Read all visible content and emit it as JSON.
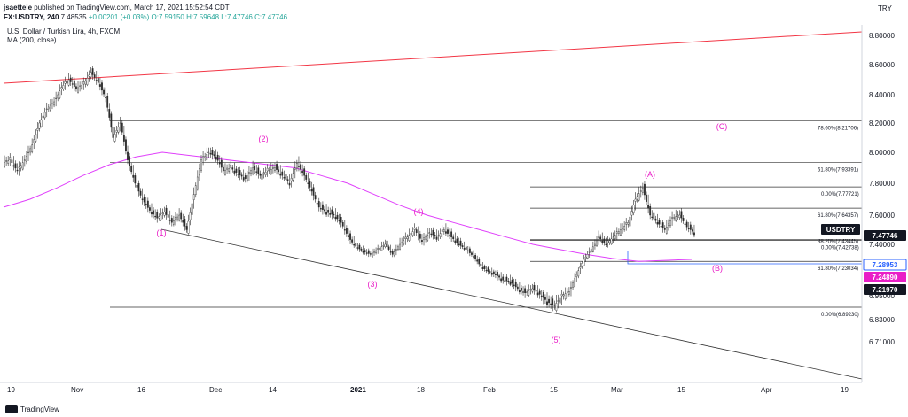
{
  "header": {
    "author": "jsaettele",
    "published": "published on TradingView.com, March 17, 2021 15:52:54 CDT",
    "symbol": "FX:USDTRY, 240",
    "last": "7.48535",
    "change": "+0.00201 (+0.03%)",
    "open": "O:7.59150",
    "high": "H:7.59648",
    "low": "L:7.47746",
    "close": "C:7.47746"
  },
  "legend": {
    "instrument": "U.S. Dollar / Turkish Lira, 4h, FXCM",
    "ma": "MA (200, close)"
  },
  "footer": {
    "brand": "TradingView"
  },
  "colors": {
    "candles": "#2a2a2a",
    "ma": "#e040fb",
    "wave": "#e91ec7",
    "trendline_top": "#f23645",
    "channel": "#333333",
    "level_blue": "#2962ff",
    "level_magenta": "#e91ec7",
    "axis_text": "#131722"
  },
  "chart_data": {
    "type": "line",
    "price_axis": {
      "ticks": [
        "8.80000",
        "8.60000",
        "8.40000",
        "8.20000",
        "8.00000",
        "7.80000",
        "7.60000",
        "7.40000",
        "7.10000",
        "6.95000",
        "6.83000",
        "6.71000"
      ],
      "currency": "TRY"
    },
    "time_axis": {
      "ticks": [
        "19",
        "Nov",
        "16",
        "Dec",
        "14",
        "2021",
        "18",
        "Feb",
        "15",
        "Mar",
        "15",
        "Apr",
        "19"
      ]
    },
    "price_labels": [
      {
        "text": "USDTRY",
        "style": "dark"
      },
      {
        "text": "7.47746",
        "style": "dark"
      },
      {
        "text": "7.28953",
        "style": "blue"
      },
      {
        "text": "7.24890",
        "style": "magenta"
      },
      {
        "text": "7.21970",
        "style": "dark"
      }
    ],
    "fib_labels": [
      {
        "text": "78.60%(8.21706)",
        "price": 8.21706
      },
      {
        "text": "61.80%(7.93391)",
        "price": 7.93391
      },
      {
        "text": "0.00%(7.77721)",
        "price": 7.77721
      },
      {
        "text": "61.80%(7.64357)",
        "price": 7.64357
      },
      {
        "text": "38.20%(7.43445)",
        "price": 7.43445
      },
      {
        "text": "0.00%(7.42738)",
        "price": 7.42738
      },
      {
        "text": "61.80%(7.23034)",
        "price": 7.23034
      },
      {
        "text": "0.00%(6.89230)",
        "price": 6.8923
      }
    ],
    "waves": [
      "(1)",
      "(2)",
      "(3)",
      "(4)",
      "(5)",
      "(A)",
      "(B)",
      "(C)"
    ],
    "series": [
      {
        "name": "USDTRY",
        "values": [
          7.93,
          7.95,
          7.88,
          7.95,
          8.05,
          8.2,
          8.3,
          8.35,
          8.45,
          8.5,
          8.44,
          8.47,
          8.55,
          8.48,
          8.38,
          8.1,
          8.2,
          7.95,
          7.8,
          7.7,
          7.63,
          7.58,
          7.62,
          7.55,
          7.6,
          7.5,
          7.73,
          7.95,
          8.0,
          7.97,
          7.88,
          7.9,
          7.86,
          7.83,
          7.9,
          7.85,
          7.88,
          7.9,
          7.85,
          7.8,
          7.93,
          7.85,
          7.75,
          7.65,
          7.62,
          7.6,
          7.55,
          7.45,
          7.38,
          7.33,
          7.3,
          7.35,
          7.4,
          7.3,
          7.4,
          7.45,
          7.5,
          7.42,
          7.48,
          7.45,
          7.5,
          7.45,
          7.4,
          7.35,
          7.28,
          7.18,
          7.13,
          7.1,
          7.06,
          7.05,
          7.0,
          6.97,
          7.0,
          6.96,
          6.92,
          6.9,
          6.95,
          6.98,
          7.1,
          7.25,
          7.35,
          7.45,
          7.4,
          7.45,
          7.5,
          7.55,
          7.7,
          7.77,
          7.6,
          7.55,
          7.5,
          7.58,
          7.6,
          7.52,
          7.48
        ]
      },
      {
        "name": "MA (200, close)",
        "values": [
          7.65,
          7.7,
          7.77,
          7.85,
          7.92,
          7.97,
          8.0,
          7.98,
          7.96,
          7.94,
          7.92,
          7.9,
          7.85,
          7.8,
          7.73,
          7.66,
          7.6,
          7.55,
          7.5,
          7.45,
          7.4,
          7.35,
          7.3,
          7.26,
          7.23,
          7.24,
          7.25
        ]
      }
    ]
  }
}
